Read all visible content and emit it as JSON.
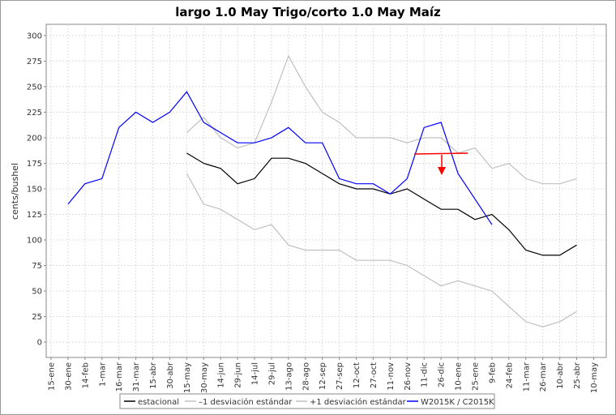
{
  "chart_data": {
    "type": "line",
    "title": "largo 1.0 May Trigo/corto 1.0 May Maíz",
    "y_label": "cents/bushel",
    "categories": [
      "15-ene",
      "30-ene",
      "14-feb",
      "1-mar",
      "16-mar",
      "31-mar",
      "15-abr",
      "30-abr",
      "15-may",
      "30-may",
      "14-jun",
      "29-jun",
      "14-jul",
      "29-jul",
      "13-ago",
      "28-ago",
      "12-sep",
      "27-sep",
      "12-oct",
      "27-oct",
      "11-nov",
      "26-nov",
      "11-dic",
      "26-dic",
      "10-ene",
      "25-ene",
      "9-feb",
      "24-feb",
      "11-mar",
      "26-mar",
      "10-abr",
      "25-abr",
      "10-may"
    ],
    "ylim": [
      -15,
      311
    ],
    "yticks": [
      0,
      25,
      50,
      75,
      100,
      125,
      150,
      175,
      200,
      225,
      250,
      275,
      300
    ],
    "grid": true,
    "series": [
      {
        "name": "estacional",
        "color": "#000000",
        "values": [
          null,
          null,
          null,
          null,
          null,
          null,
          null,
          null,
          185,
          175,
          170,
          155,
          160,
          180,
          180,
          175,
          165,
          155,
          150,
          150,
          145,
          150,
          140,
          130,
          130,
          120,
          125,
          110,
          90,
          85,
          85,
          95,
          null
        ]
      },
      {
        "name": "–1 desviación estándar",
        "color": "#c0c0c0",
        "values": [
          null,
          null,
          null,
          null,
          null,
          null,
          null,
          null,
          165,
          135,
          130,
          120,
          110,
          115,
          95,
          90,
          90,
          90,
          80,
          80,
          80,
          75,
          65,
          55,
          60,
          55,
          50,
          35,
          20,
          15,
          20,
          30,
          null
        ]
      },
      {
        "name": "+1 desviación estándar",
        "color": "#c0c0c0",
        "values": [
          null,
          null,
          null,
          null,
          null,
          null,
          null,
          null,
          205,
          220,
          200,
          190,
          195,
          235,
          280,
          250,
          225,
          215,
          200,
          200,
          200,
          195,
          200,
          200,
          185,
          190,
          170,
          175,
          160,
          155,
          155,
          160,
          null
        ]
      },
      {
        "name": "W2015K / C2015K",
        "color": "#0000ff",
        "values": [
          null,
          135,
          155,
          160,
          210,
          225,
          215,
          225,
          245,
          215,
          205,
          195,
          195,
          200,
          210,
          195,
          195,
          160,
          155,
          155,
          145,
          160,
          210,
          215,
          165,
          140,
          115,
          null,
          null,
          null,
          null,
          null,
          null
        ]
      }
    ]
  }
}
